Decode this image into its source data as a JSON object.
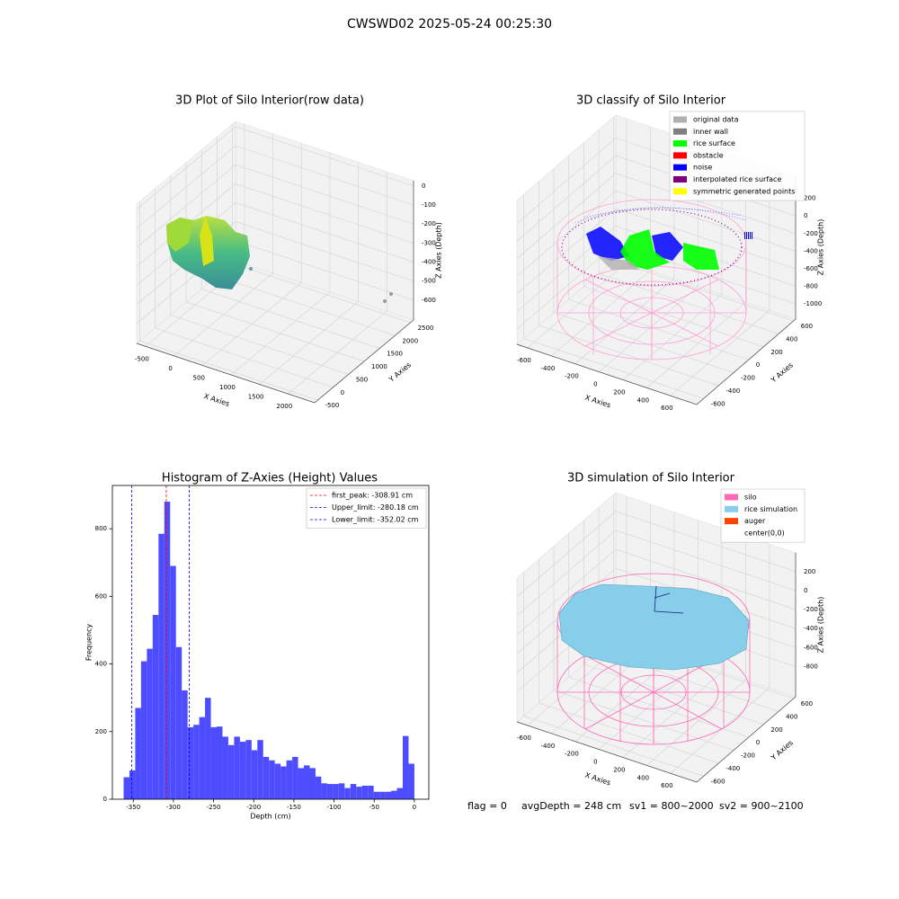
{
  "title": "CWSWD02 2025-05-24 00:25:30",
  "chart_data": [
    {
      "type": "scatter3d",
      "title": "3D Plot of Silo Interior(row data)",
      "xlabel": "X Axies",
      "ylabel": "Y Axies",
      "zlabel": "Z Axies (Depth)",
      "xlim": [
        -656,
        2469
      ],
      "xticks": [
        -500,
        0,
        500,
        1000,
        1500,
        2000
      ],
      "ylim": [
        -600,
        2600
      ],
      "yticks": [
        -500,
        0,
        500,
        1000,
        1500,
        2000,
        2500
      ],
      "zlim": [
        -705,
        28
      ],
      "zticks": [
        -600,
        -500,
        -400,
        -300,
        -200,
        -100,
        0
      ]
    },
    {
      "type": "scatter3d",
      "title": "3D classify of Silo Interior",
      "xlabel": "X Axies",
      "ylabel": "Y Axies",
      "zlabel": "Z Axies (Depth)",
      "xlim": [
        -690,
        820
      ],
      "xticks": [
        -600,
        -400,
        -200,
        0,
        200,
        400,
        600
      ],
      "ylim": [
        -692,
        627
      ],
      "yticks": [
        -600,
        -400,
        -200,
        0,
        200,
        400,
        600
      ],
      "zlim": [
        -1173,
        462
      ],
      "zticks": [
        -1000,
        -800,
        -600,
        -400,
        -200,
        0,
        200
      ],
      "legend": [
        {
          "name": "original data",
          "color": "#b0b0b0"
        },
        {
          "name": "inner wall",
          "color": "#808080"
        },
        {
          "name": "rice surface",
          "color": "#00ff00"
        },
        {
          "name": "obstacle",
          "color": "#ff0000"
        },
        {
          "name": "noise",
          "color": "#0000ff"
        },
        {
          "name": "interpolated rice surface",
          "color": "#800080"
        },
        {
          "name": "symmetric generated points",
          "color": "#ffff00"
        }
      ]
    },
    {
      "type": "histogram",
      "title": "Histogram of Z-Axies (Height) Values",
      "xlabel": "Depth (cm)",
      "ylabel": "Frequency",
      "color": "#4d4dff",
      "bins": [
        -362,
        -354.76,
        -347.52,
        -340.28,
        -333.04,
        -325.8,
        -318.56,
        -311.32,
        -304.08,
        -296.84,
        -289.6,
        -282.36,
        -275.12,
        -267.88,
        -260.64,
        -253.4,
        -246.16,
        -238.92,
        -231.68,
        -224.44,
        -217.2,
        -209.96,
        -202.72,
        -195.48,
        -188.24,
        -181,
        -173.76,
        -166.52,
        -159.28,
        -152.04,
        -144.8,
        -137.56,
        -130.32,
        -123.08,
        -115.84,
        -108.6,
        -101.36,
        -94.12,
        -86.88,
        -79.64,
        -72.4,
        -65.16,
        -57.92,
        -50.68,
        -43.44,
        -36.2,
        -28.96,
        -21.72,
        -14.48,
        -7.24,
        0
      ],
      "counts": [
        65,
        85,
        270,
        408,
        445,
        545,
        785,
        880,
        690,
        450,
        322,
        213,
        220,
        243,
        300,
        213,
        215,
        185,
        160,
        185,
        170,
        175,
        145,
        175,
        125,
        115,
        105,
        97,
        115,
        125,
        92,
        100,
        92,
        67,
        47,
        45,
        45,
        47,
        33,
        45,
        37,
        40,
        40,
        22,
        22,
        22,
        25,
        33,
        187,
        105
      ],
      "xlim": [
        -376,
        18
      ],
      "xticks": [
        -350,
        -300,
        -250,
        -200,
        -150,
        -100,
        -50,
        0
      ],
      "ylim": [
        0,
        928
      ],
      "yticks": [
        0,
        200,
        400,
        600,
        800
      ],
      "lines": [
        {
          "label": "first_peak: -308.91 cm",
          "value": -308.91,
          "color": "#ff0000"
        },
        {
          "label": "Upper_limit: -280.18 cm",
          "value": -280.18,
          "color": "#0000ff"
        },
        {
          "label": "Lower_limit: -352.02 cm",
          "value": -352.02,
          "color": "#0000ff"
        }
      ]
    },
    {
      "type": "surface3d",
      "title": "3D simulation of Silo Interior",
      "xlabel": "X Axies",
      "ylabel": "Y Axies",
      "zlabel": "Z Axies (Depth)",
      "xlim": [
        -690,
        820
      ],
      "xticks": [
        -600,
        -400,
        -200,
        0,
        200,
        400,
        600
      ],
      "ylim": [
        -692,
        627
      ],
      "yticks": [
        -600,
        -400,
        -200,
        0,
        200,
        400,
        600
      ],
      "zlim": [
        -1118,
        397
      ],
      "zticks": [
        -800,
        -600,
        -400,
        -200,
        0,
        200
      ],
      "legend": [
        {
          "name": "silo",
          "color": "#ff69b4"
        },
        {
          "name": "rice simulation",
          "color": "#87ceeb"
        },
        {
          "name": "auger",
          "color": "#ff4500"
        },
        {
          "name": "center(0,0)",
          "color": "#ffffff"
        }
      ]
    }
  ],
  "status": [
    "flag = 0",
    "avgDepth = 248 cm",
    "sv1 = 800~2000",
    "sv2 = 900~2100"
  ]
}
